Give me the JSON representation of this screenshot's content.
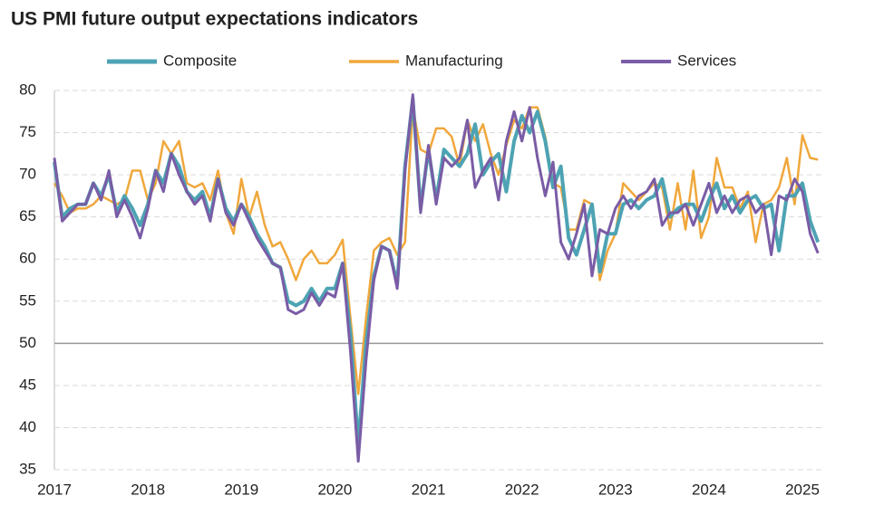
{
  "chart_data": {
    "type": "line",
    "title": "US PMI future output expectations indicators",
    "categories": [
      "2017",
      null,
      null,
      null,
      null,
      null,
      null,
      null,
      null,
      null,
      null,
      null,
      "2018",
      null,
      null,
      null,
      null,
      null,
      null,
      null,
      null,
      null,
      null,
      null,
      "2019",
      null,
      null,
      null,
      null,
      null,
      null,
      null,
      null,
      null,
      null,
      null,
      "2020",
      null,
      null,
      null,
      null,
      null,
      null,
      null,
      null,
      null,
      null,
      null,
      "2021",
      null,
      null,
      null,
      null,
      null,
      null,
      null,
      null,
      null,
      null,
      null,
      "2022",
      null,
      null,
      null,
      null,
      null,
      null,
      null,
      null,
      null,
      null,
      null,
      "2023",
      null,
      null,
      null,
      null,
      null,
      null,
      null,
      null,
      null,
      null,
      null,
      "2024",
      null,
      null,
      null,
      null,
      null,
      null,
      null,
      null,
      null,
      null,
      null,
      "2025",
      null,
      null
    ],
    "series": [
      {
        "name": "Composite",
        "color": "#4da3b3",
        "width": 4,
        "values": [
          71.5,
          65,
          66,
          66.5,
          66.5,
          69,
          67.5,
          70,
          65.5,
          67.5,
          66,
          64,
          66.5,
          70.5,
          69,
          72.5,
          71,
          68,
          67,
          68,
          65,
          69.5,
          66,
          64.5,
          66.5,
          65,
          63,
          61.5,
          59.5,
          59,
          55,
          54.5,
          55,
          56.5,
          55,
          56.5,
          56.5,
          59.5,
          51,
          38,
          50,
          58,
          61.5,
          61,
          57,
          71,
          79,
          66,
          73,
          67,
          73,
          72,
          71,
          72.5,
          76,
          70,
          71.5,
          72.5,
          68,
          74,
          77,
          75,
          77.5,
          74,
          68.5,
          71,
          62.5,
          60.5,
          63.5,
          66.5,
          58.5,
          63,
          63,
          66.5,
          67,
          66,
          67,
          67.5,
          69.5,
          65,
          66,
          66.5,
          66.5,
          64.5,
          67,
          69,
          66,
          67.5,
          65.5,
          67,
          67.5,
          66,
          66.5,
          61,
          67.5,
          67.5,
          69,
          64.5,
          62
        ]
      },
      {
        "name": "Manufacturing",
        "color": "#f0a73c",
        "width": 2.5,
        "values": [
          69,
          67.5,
          65.5,
          66,
          66,
          66.5,
          67.5,
          67,
          66.5,
          67,
          70.5,
          70.5,
          67,
          69,
          74,
          72.5,
          74,
          69,
          68.5,
          69,
          67,
          70.5,
          65.5,
          63,
          69.5,
          65,
          68,
          64,
          61.5,
          62,
          60,
          57.5,
          60,
          61,
          59.5,
          59.5,
          60.5,
          62.3,
          53,
          44,
          53,
          61,
          62,
          62.5,
          60.5,
          62,
          78,
          73,
          72.5,
          75.5,
          75.5,
          74.5,
          71,
          76.5,
          74,
          76,
          72.5,
          70,
          73.5,
          76.5,
          75.5,
          78,
          78,
          74.5,
          69,
          68.5,
          63.5,
          63.5,
          67,
          66.5,
          57.5,
          61,
          63,
          69,
          68,
          67,
          68,
          69,
          68.5,
          63.5,
          69,
          63.5,
          70.5,
          62.5,
          65,
          72,
          68.5,
          68.5,
          66,
          68,
          62,
          66.5,
          67,
          68.5,
          72,
          66.5,
          74.7,
          72,
          71.8
        ]
      },
      {
        "name": "Services",
        "color": "#7a5ca6",
        "width": 3,
        "values": [
          72,
          64.5,
          65.5,
          66.5,
          66.5,
          69,
          67,
          70.5,
          65,
          67,
          65,
          62.5,
          66,
          70.5,
          68,
          72.5,
          70,
          68,
          66.5,
          67.5,
          64.5,
          69.5,
          65.5,
          64,
          66.5,
          64.5,
          62.5,
          61,
          59.5,
          59,
          54,
          53.5,
          54,
          56,
          54.5,
          56,
          55.5,
          59.5,
          49,
          36,
          48,
          57.5,
          61.5,
          61,
          56.5,
          70.5,
          79.5,
          65.5,
          73.5,
          66.5,
          72,
          71,
          72,
          76.5,
          68.5,
          70.5,
          72,
          67,
          74,
          77.5,
          74,
          78,
          72,
          67.5,
          71.5,
          62,
          60,
          63,
          66.5,
          58,
          63.5,
          63,
          66,
          67.5,
          66,
          67.5,
          68,
          69.5,
          64,
          65.5,
          65.5,
          66.5,
          64,
          66.5,
          69,
          65.5,
          67.5,
          65.5,
          67,
          67.5,
          65.5,
          66.5,
          60.5,
          67.5,
          67,
          69.5,
          68,
          63,
          60.7
        ]
      }
    ],
    "ylim": [
      35,
      80
    ],
    "yticks": [
      35,
      40,
      45,
      50,
      55,
      60,
      65,
      70,
      75,
      80
    ],
    "grid": true,
    "hline": 50,
    "legend": "top"
  }
}
